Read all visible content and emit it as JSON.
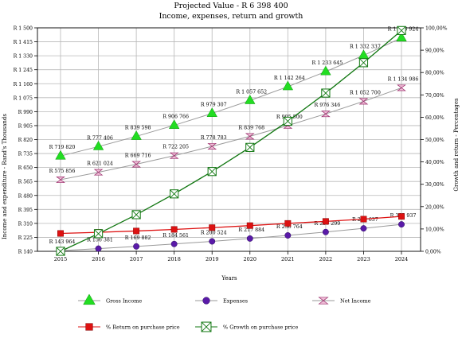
{
  "chart_data": {
    "type": "line",
    "title": "Projected Value - R 6 398 400",
    "subtitle": "Income, expenses, return and growth",
    "xlabel": "Years",
    "ylabel_left": "Income and expenditure - Rand's Thousands",
    "ylabel_right": "Growth and return - Percentages",
    "categories": [
      "2015",
      "2016",
      "2017",
      "2018",
      "2019",
      "2020",
      "2021",
      "2022",
      "2023",
      "2024"
    ],
    "y_left": {
      "min": 140,
      "max": 1500,
      "ticks": [
        140,
        225,
        310,
        395,
        480,
        565,
        650,
        735,
        820,
        905,
        990,
        1075,
        1160,
        1245,
        1330,
        1415,
        1500
      ],
      "tick_labels": [
        "R 140",
        "R 225",
        "R 310",
        "R 395",
        "R 480",
        "R 565",
        "R 650",
        "R 735",
        "R 820",
        "R 905",
        "R 990",
        "R 1 075",
        "R 1 160",
        "R 1 245",
        "R 1 330",
        "R 1 415",
        "R 1 500"
      ]
    },
    "y_right": {
      "min": 0,
      "max": 100,
      "ticks": [
        0,
        10,
        20,
        30,
        40,
        50,
        60,
        70,
        80,
        90,
        100
      ],
      "tick_labels": [
        "0,00%",
        "10,00%",
        "20,00%",
        "30,00%",
        "40,00%",
        "50,00%",
        "60,00%",
        "70,00%",
        "80,00%",
        "90,00%",
        "100,00%"
      ]
    },
    "grid": true,
    "series": [
      {
        "name": "Gross Income",
        "axis": "left",
        "marker": "triangle",
        "color": "#22dd22",
        "line_color": "#999999",
        "values": [
          719.82,
          777.406,
          839.598,
          906.766,
          979.307,
          1057.652,
          1142.264,
          1233.645,
          1332.337,
          1438.924
        ],
        "labels": [
          "R 719 820",
          "R 777 406",
          "R 839 598",
          "R 906 766",
          "R 979 307",
          "R 1 057 652",
          "R 1 142 264",
          "R 1 233 645",
          "R 1 332 337",
          "R 1 438 924"
        ]
      },
      {
        "name": "Expenses",
        "axis": "left",
        "marker": "circle",
        "color": "#5a1aa8",
        "line_color": "#999999",
        "values": [
          143.964,
          156.381,
          169.882,
          184.561,
          200.524,
          217.884,
          236.764,
          257.299,
          279.637,
          303.937
        ],
        "labels": [
          "R 143 964",
          "R 156 381",
          "R 169 882",
          "R 184 561",
          "R 200 524",
          "R 217 884",
          "R 236 764",
          "R 257 299",
          "R 279 637",
          "R 303 937"
        ]
      },
      {
        "name": "Net Income",
        "axis": "left",
        "marker": "bowtie",
        "color": "#d46aa0",
        "line_color": "#999999",
        "values": [
          575.856,
          621.024,
          669.716,
          722.205,
          778.783,
          839.768,
          905.5,
          976.346,
          1052.7,
          1134.986
        ],
        "labels": [
          "R 575 856",
          "R 621 024",
          "R 669 716",
          "R 722 205",
          "R 778 783",
          "R 839 768",
          "R 905 500",
          "R 976 346",
          "R 1 052 700",
          "R 1 134 986"
        ]
      },
      {
        "name": "% Return on purchase price",
        "axis": "right",
        "marker": "square",
        "color": "#dd1111",
        "line_color": "#dd1111",
        "values": [
          8.0,
          8.5,
          9.1,
          9.8,
          10.6,
          11.5,
          12.5,
          13.4,
          14.4,
          15.6
        ]
      },
      {
        "name": "% Growth on purchase price",
        "axis": "right",
        "marker": "boxx",
        "color": "#117711",
        "line_color": "#117711",
        "values": [
          0,
          7.9,
          16.4,
          25.7,
          35.7,
          46.5,
          58.2,
          70.8,
          84.4,
          98.8
        ]
      }
    ],
    "legend_position": "bottom"
  }
}
